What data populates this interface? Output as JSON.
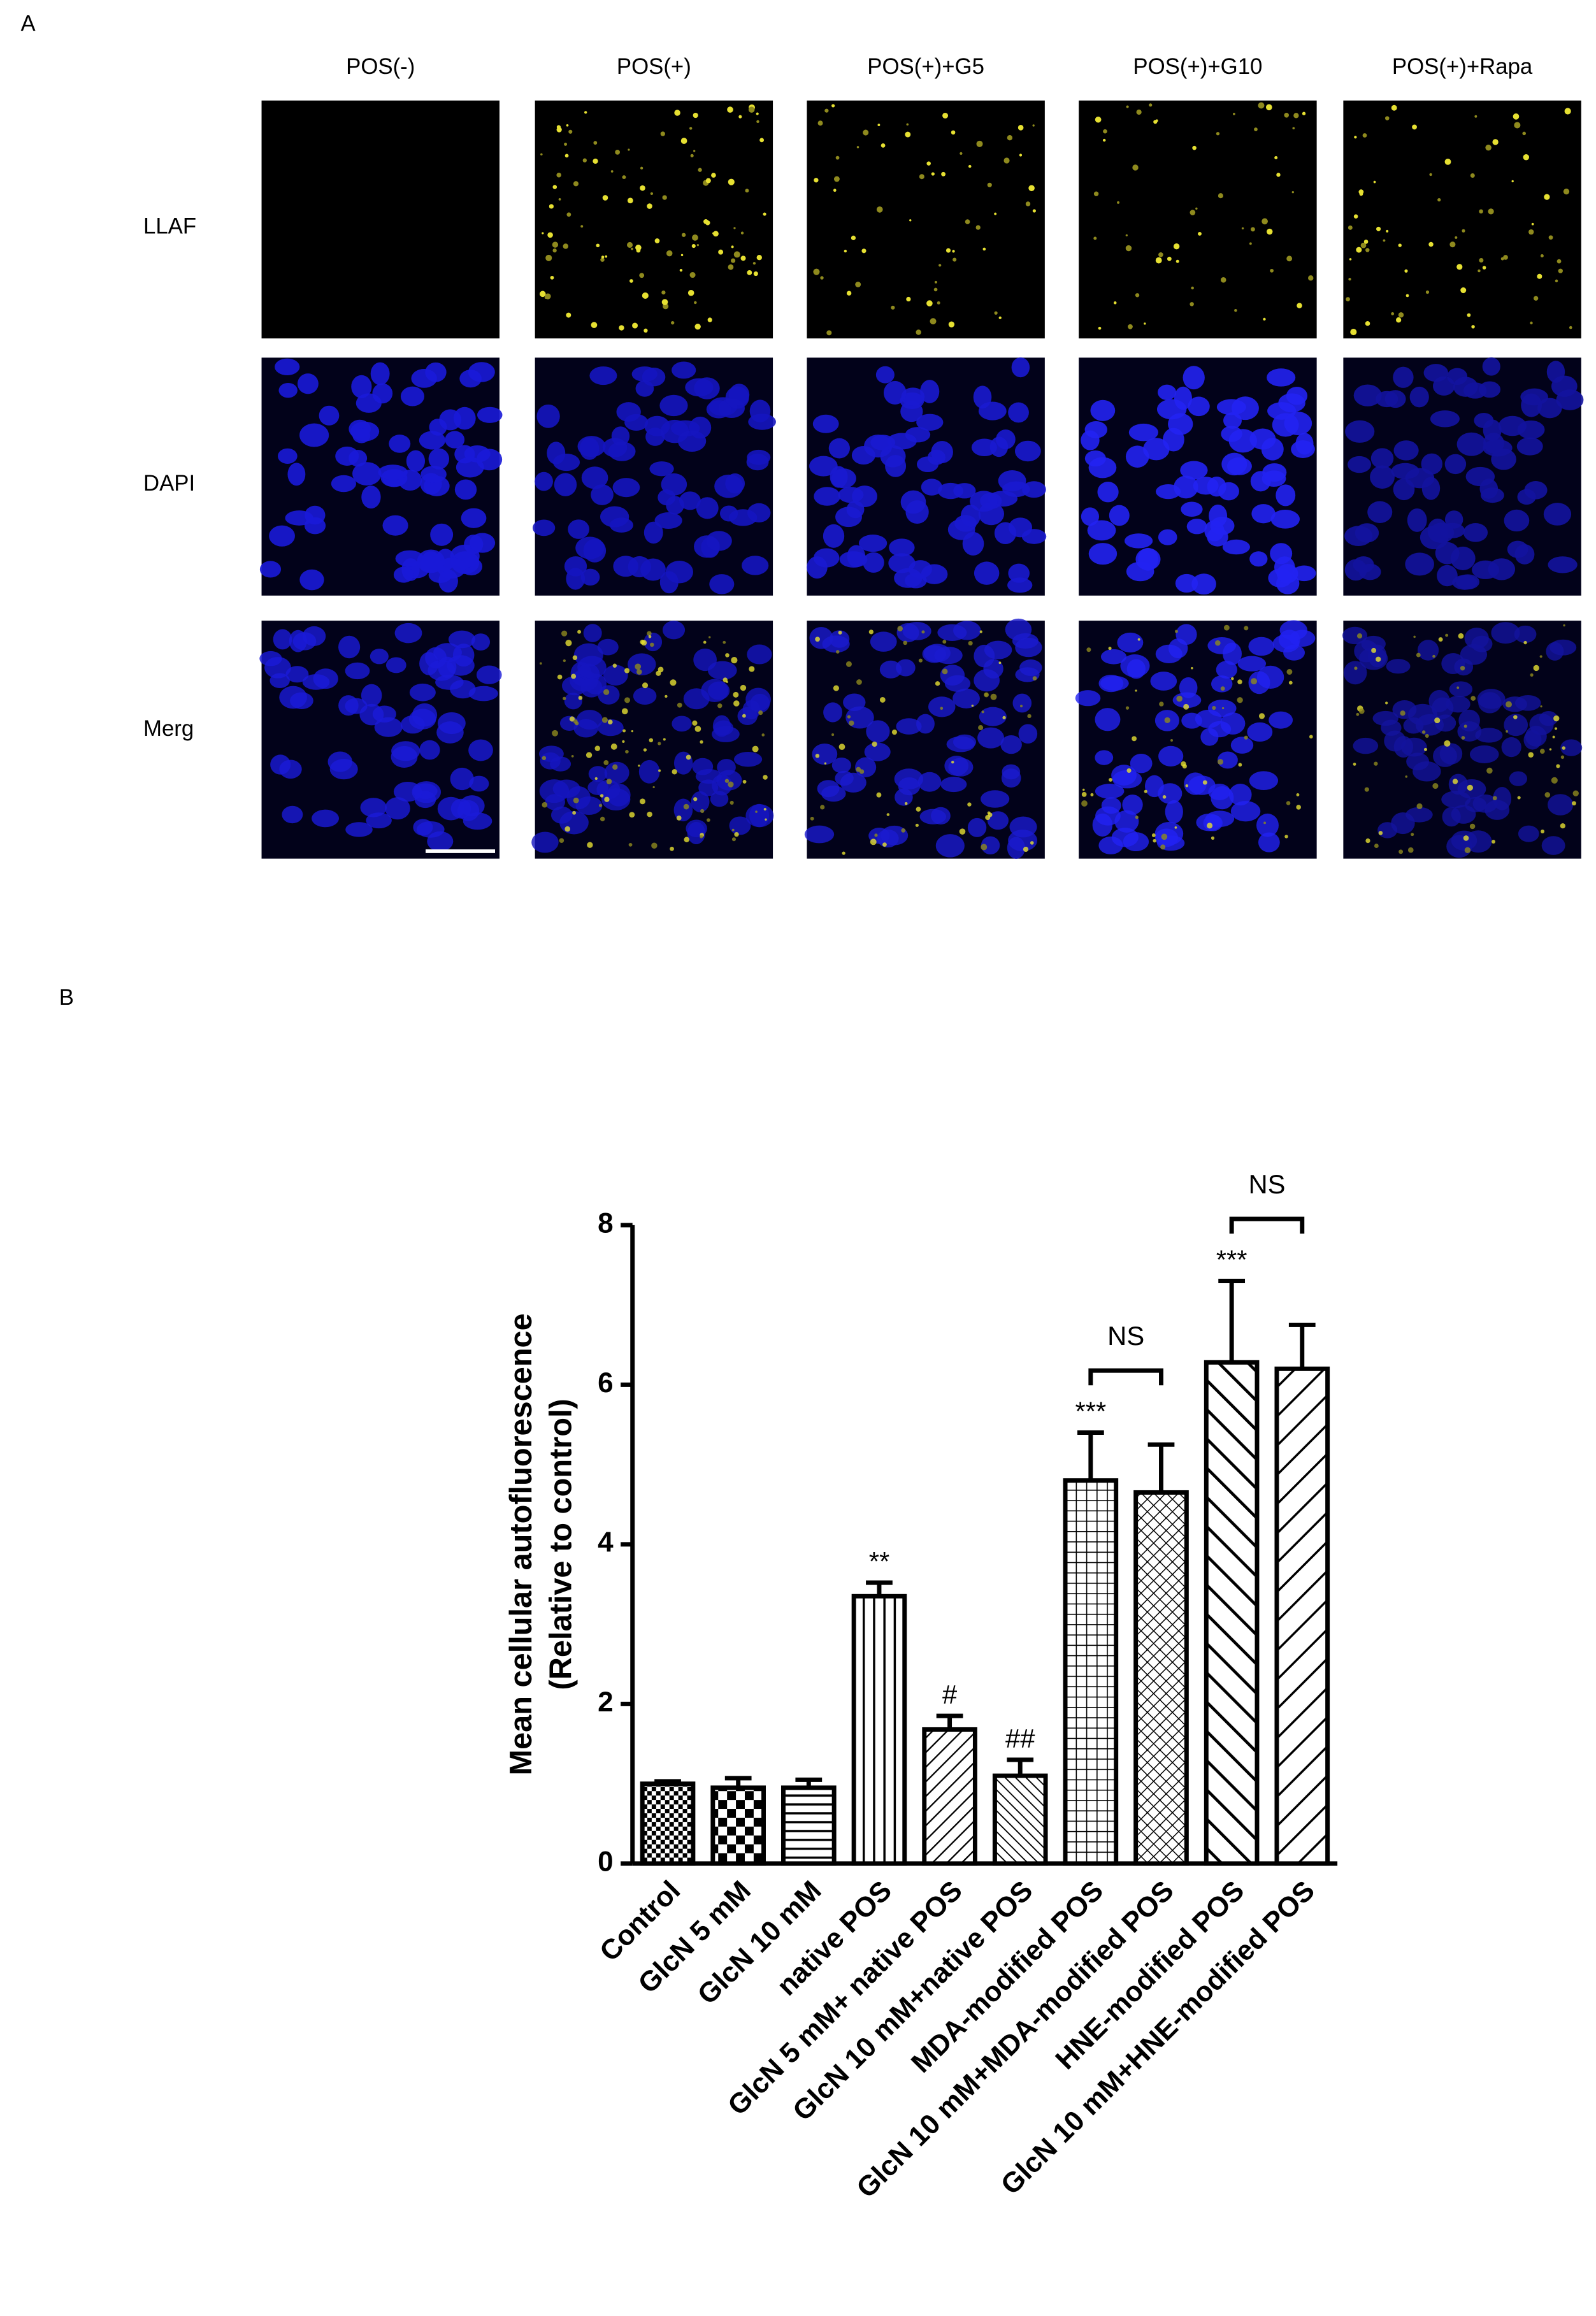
{
  "panel_a": {
    "label": "A",
    "columns": [
      "POS(-)",
      "POS(+)",
      "POS(+)+G5",
      "POS(+)+G10",
      "POS(+)+Rapa"
    ],
    "rows": [
      "LLAF",
      "DAPI",
      "Merg"
    ]
  },
  "chart_data": {
    "type": "bar",
    "panel_label": "B",
    "y_label": [
      "Mean cellular autofluorescence",
      "(Relative to control)"
    ],
    "categories": [
      "Control",
      "GlcN 5 mM",
      "GlcN 10 mM",
      "native POS",
      "GlcN 5 mM+ native POS",
      "GlcN 10 mM+native POS",
      "MDA-modified POS",
      "GlcN 10 mM+MDA-modified POS",
      "HNE-modified POS",
      "GlcN 10 mM+HNE-modified POS"
    ],
    "values": [
      1.0,
      0.95,
      0.95,
      3.35,
      1.68,
      1.1,
      4.8,
      4.65,
      6.28,
      6.2
    ],
    "errors": [
      0.03,
      0.12,
      0.1,
      0.17,
      0.17,
      0.2,
      0.6,
      0.6,
      1.02,
      0.55
    ],
    "significance": [
      null,
      null,
      null,
      "**",
      "#",
      "##",
      "***",
      null,
      "***",
      null
    ],
    "comparisons": [
      {
        "label": "NS",
        "between": [
          "MDA-modified POS",
          "GlcN 10 mM+MDA-modified POS"
        ]
      },
      {
        "label": "NS",
        "between": [
          "HNE-modified POS",
          "GlcN 10 mM+HNE-modified POS"
        ]
      }
    ],
    "patterns": [
      "checker-fine",
      "checker",
      "horizontal",
      "vertical",
      "diagonal-up",
      "diagonal-down-dense",
      "grid",
      "crosshatch",
      "diagonal-down-wide",
      "diagonal-up-wide"
    ],
    "color": "#000000",
    "ylim": [
      0,
      8
    ],
    "yticks": [
      0,
      2,
      4,
      6,
      8
    ]
  }
}
